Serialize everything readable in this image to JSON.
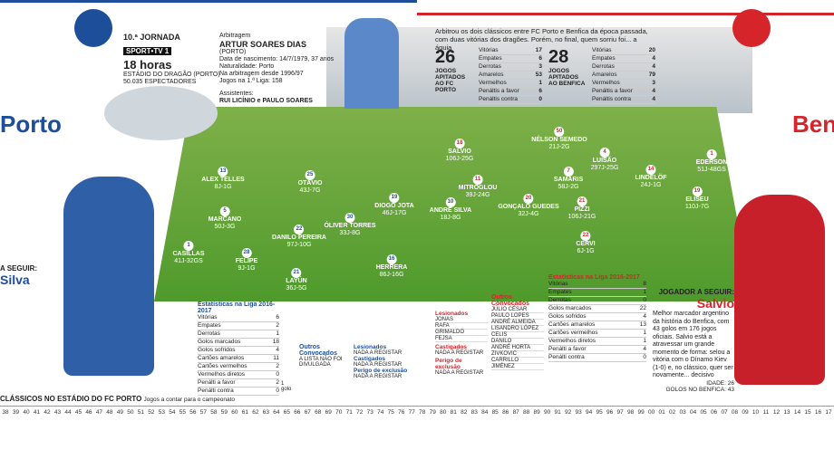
{
  "header": {
    "jornada": "10.ª JORNADA",
    "tv": "SPORT•TV 1",
    "time": "18 horas",
    "stadium": "ESTÁDIO DO DRAGÃO (PORTO)",
    "spectators": "50.035 ESPECTADORES"
  },
  "referee": {
    "label": "Arbitragem",
    "name": "ARTUR SOARES DIAS",
    "origin": "(PORTO)",
    "lines": [
      "Data de nascimento: 14/7/1979, 37 anos",
      "Naturalidade: Porto",
      "Na arbitragem desde 1996/97",
      "Jogos na 1.ª Liga: 158"
    ],
    "assistants_label": "Assistentes:",
    "assistants": "RUI LICÍNIO e PAULO SOARES"
  },
  "intro": "Arbitrou os dois clássicos entre FC Porto e Benfica da época passada, com duas vitórias dos dragões. Porém, no final, quem sorriu foi... a águia",
  "ref_porto": {
    "count": "26",
    "label": "JOGOS APITADOS AO FC PORTO",
    "rows": [
      [
        "Vitórias",
        "17"
      ],
      [
        "Empates",
        "6"
      ],
      [
        "Derrotas",
        "3"
      ],
      [
        "Amarelos",
        "53"
      ],
      [
        "Vermelhos",
        "1"
      ],
      [
        "Penáltis a favor",
        "6"
      ],
      [
        "Penáltis contra",
        "0"
      ]
    ]
  },
  "ref_benfica": {
    "count": "28",
    "label": "JOGOS APITADOS AO BENFICA",
    "rows": [
      [
        "Vitórias",
        "20"
      ],
      [
        "Empates",
        "4"
      ],
      [
        "Derrotas",
        "4"
      ],
      [
        "Amarelos",
        "79"
      ],
      [
        "Vermelhos",
        "3"
      ],
      [
        "Penáltis a favor",
        "4"
      ],
      [
        "Penáltis contra",
        "4"
      ]
    ]
  },
  "teams": [
    "Porto",
    "Benfica"
  ],
  "porto_players": [
    [
      "1",
      "CASILLAS",
      "41J-32GS"
    ],
    [
      "13",
      "ALEX TELLES",
      "8J-1G"
    ],
    [
      "5",
      "MARCANO",
      "50J-3G"
    ],
    [
      "28",
      "FELIPE",
      "9J-1G"
    ],
    [
      "25",
      "OTÁVIO",
      "43J-7G"
    ],
    [
      "22",
      "DANILO PEREIRA",
      "97J-10G"
    ],
    [
      "21",
      "LAYÚN",
      "36J-5G"
    ],
    [
      "30",
      "ÓLIVER TORRES",
      "33J-8G"
    ],
    [
      "19",
      "DIOGO JOTA",
      "46J-17G"
    ],
    [
      "16",
      "HERRERA",
      "86J-16G"
    ],
    [
      "10",
      "ANDRÉ SILVA",
      "18J-8G"
    ]
  ],
  "benfica_players": [
    [
      "18",
      "SALVIO",
      "106J-25G"
    ],
    [
      "11",
      "MITROGLOU",
      "39J-24G"
    ],
    [
      "20",
      "GONÇALO GUEDES",
      "32J-4G"
    ],
    [
      "7",
      "SAMARIS",
      "58J-2G"
    ],
    [
      "21",
      "PIZZI",
      "106J-21G"
    ],
    [
      "22",
      "CERVI",
      "6J-1G"
    ],
    [
      "50",
      "NÉLSON SEMEDO",
      "21J-2G"
    ],
    [
      "4",
      "LUISÃO",
      "297J-25G"
    ],
    [
      "14",
      "LINDELÖF",
      "24J-1G"
    ],
    [
      "1",
      "EDERSON",
      "51J-48GS"
    ],
    [
      "19",
      "ELISEU",
      "110J-7G"
    ]
  ],
  "porto_follow": {
    "label": "A SEGUIR:",
    "name": "Silva"
  },
  "benfica_follow": {
    "label": "JOGADOR A SEGUIR:",
    "name": "Salvio",
    "text": "Melhor marcador argentino da história do Benfica, com 43 golos em 176 jogos oficiais. Salvio está a atravessar um grande momento de forma: selou a vitória com o Dínamo Kiev (1-0) e, no clássico, quer ser novamente... decisivo",
    "facts": [
      "IDADE: 26",
      "GOLOS NO BENFICA: 43"
    ]
  },
  "porto_stats": {
    "title": "Estatísticas na Liga 2016-2017",
    "rows": [
      [
        "Vitórias",
        "6"
      ],
      [
        "Empates",
        "2"
      ],
      [
        "Derrotas",
        "1"
      ],
      [
        "Golos marcados",
        "18"
      ],
      [
        "Golos sofridos",
        "4"
      ],
      [
        "Cartões amarelos",
        "11"
      ],
      [
        "Cartões vermelhos",
        "2"
      ],
      [
        "Vermelhos diretos",
        "0"
      ],
      [
        "Penálti a favor",
        "2"
      ],
      [
        "Penálti contra",
        "0"
      ]
    ],
    "note": "1 golo"
  },
  "benfica_stats": {
    "title": "Estatísticas na Liga 2016-2017",
    "rows": [
      [
        "Vitórias",
        "8"
      ],
      [
        "Empates",
        "1"
      ],
      [
        "Derrotas",
        "0"
      ],
      [
        "Golos marcados",
        "22"
      ],
      [
        "Golos sofridos",
        "4"
      ],
      [
        "Cartões amarelos",
        "13"
      ],
      [
        "Cartões vermelhos",
        "1"
      ],
      [
        "Vermelhos diretos",
        "1"
      ],
      [
        "Penálti a favor",
        "4"
      ],
      [
        "Penálti contra",
        "0"
      ]
    ]
  },
  "porto_other": {
    "title": "Outros Convocados",
    "text": "A LISTA NÃO FOI DIVULGADA",
    "sections": [
      [
        "Lesionados",
        "NADA A REGISTAR"
      ],
      [
        "Castigados",
        "NADA A REGISTAR"
      ],
      [
        "Perigo de exclusão",
        "NADA A REGISTAR"
      ]
    ]
  },
  "benfica_other": {
    "injured_label": "Lesionados",
    "injured": [
      "JONAS",
      "RAFA",
      "GRIMALDO",
      "FEJSA"
    ],
    "sections": [
      [
        "Castigados",
        "NADA A REGISTAR"
      ],
      [
        "Perigo de exclusão",
        "NADA A REGISTAR"
      ]
    ],
    "title": "Outros Convocados",
    "list": [
      "JÚLIO CÉSAR",
      "PAULO LOPES",
      "ANDRÉ ALMEIDA",
      "LISANDRO LÓPEZ",
      "CELIS",
      "DANILO",
      "ANDRÉ HORTA",
      "ZIVKOVIC",
      "CARRILLO",
      "JIMÉNEZ"
    ]
  },
  "history": {
    "title": "CLÁSSICOS NO ESTÁDIO DO FC PORTO",
    "subtitle": "Jogos a contar para o campeonato",
    "years": [
      "38",
      "39",
      "40",
      "41",
      "42",
      "43",
      "44",
      "45",
      "46",
      "47",
      "48",
      "49",
      "50",
      "51",
      "52",
      "53",
      "54",
      "55",
      "56",
      "57",
      "58",
      "59",
      "60",
      "61",
      "62",
      "63",
      "64",
      "65",
      "66",
      "67",
      "68",
      "69",
      "70",
      "71",
      "72",
      "73",
      "74",
      "75",
      "76",
      "77",
      "78",
      "79",
      "80",
      "81",
      "82",
      "83",
      "84",
      "85",
      "86",
      "87",
      "88",
      "89",
      "90",
      "91",
      "92",
      "93",
      "94",
      "95",
      "96",
      "97",
      "98",
      "99",
      "00",
      "01",
      "02",
      "03",
      "04",
      "05",
      "06",
      "07",
      "08",
      "09",
      "10",
      "11",
      "12",
      "13",
      "14",
      "15",
      "16",
      "17"
    ]
  }
}
